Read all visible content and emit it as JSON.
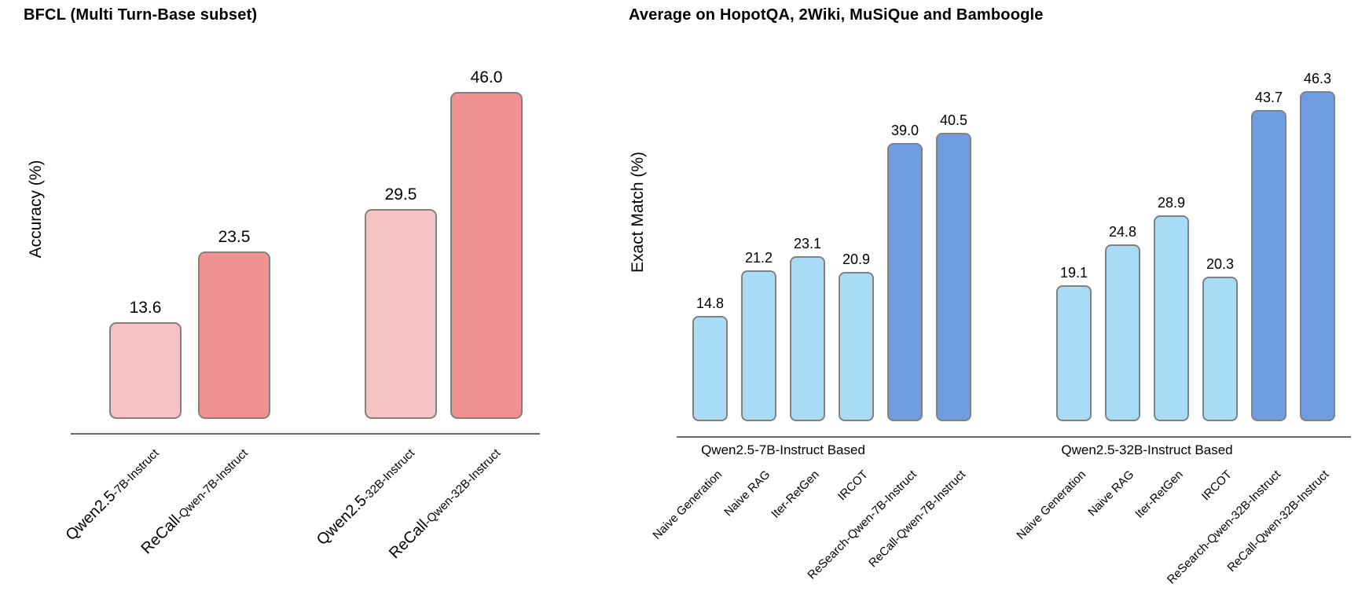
{
  "figure": {
    "background": "#ffffff",
    "colors": {
      "pink_light": "#f5c3c3",
      "pink_dark": "#f09292",
      "blue_light": "#a8dcf6",
      "blue_dark": "#6f9ce3",
      "bar_border": "#818181",
      "axis_line": "#6a6a6a",
      "text": "#000000"
    }
  },
  "chart_data": [
    {
      "type": "bar",
      "title": "BFCL (Multi Turn-Base subset)",
      "xlabel": "",
      "ylabel": "Accuracy (%)",
      "ylim": [
        0,
        50
      ],
      "grid": false,
      "legend": "none",
      "value_labels_shown": true,
      "categories": [
        "Qwen2.5-7B-Instruct",
        "ReCall-Qwen-7B-Instruct",
        "Qwen2.5-32B-Instruct",
        "ReCall-Qwen-32B-Instruct"
      ],
      "category_parts": [
        {
          "big": "Qwen2.5",
          "small": "-7B-Instruct"
        },
        {
          "big": "ReCall",
          "small": "-Qwen-7B-Instruct"
        },
        {
          "big": "Qwen2.5",
          "small": "-32B-Instruct"
        },
        {
          "big": "ReCall",
          "small": "-Qwen-32B-Instruct"
        }
      ],
      "values": [
        13.6,
        23.5,
        29.5,
        46.0
      ],
      "value_labels": [
        "13.6",
        "23.5",
        "29.5",
        "46.0"
      ],
      "bar_colors": [
        "pink_light",
        "pink_dark",
        "pink_light",
        "pink_dark"
      ]
    },
    {
      "type": "bar",
      "title": "Average on HopotQA, 2Wiki, MuSiQue and Bamboogle",
      "xlabel": "",
      "ylabel": "Exact Match (%)",
      "ylim": [
        0,
        50
      ],
      "grid": false,
      "legend": "none",
      "value_labels_shown": true,
      "groups": [
        {
          "label": "Qwen2.5-7B-Instruct Based",
          "categories": [
            "Naive Generation",
            "Naive RAG",
            "Iter-RetGen",
            "IRCOT",
            "ReSearch-Qwen-7B-Instruct",
            "ReCall-Qwen-7B-Instruct"
          ],
          "values": [
            14.8,
            21.2,
            23.1,
            20.9,
            39.0,
            40.5
          ],
          "value_labels": [
            "14.8",
            "21.2",
            "23.1",
            "20.9",
            "39.0",
            "40.5"
          ],
          "bar_colors": [
            "blue_light",
            "blue_light",
            "blue_light",
            "blue_light",
            "blue_dark",
            "blue_dark"
          ]
        },
        {
          "label": "Qwen2.5-32B-Instruct Based",
          "categories": [
            "Naive Generation",
            "Naive RAG",
            "Iter-RetGen",
            "IRCOT",
            "ReSearch-Qwen-32B-Instruct",
            "ReCall-Qwen-32B-Instruct"
          ],
          "values": [
            19.1,
            24.8,
            28.9,
            20.3,
            43.7,
            46.3
          ],
          "value_labels": [
            "19.1",
            "24.8",
            "28.9",
            "20.3",
            "43.7",
            "46.3"
          ],
          "bar_colors": [
            "blue_light",
            "blue_light",
            "blue_light",
            "blue_light",
            "blue_dark",
            "blue_dark"
          ]
        }
      ]
    }
  ]
}
